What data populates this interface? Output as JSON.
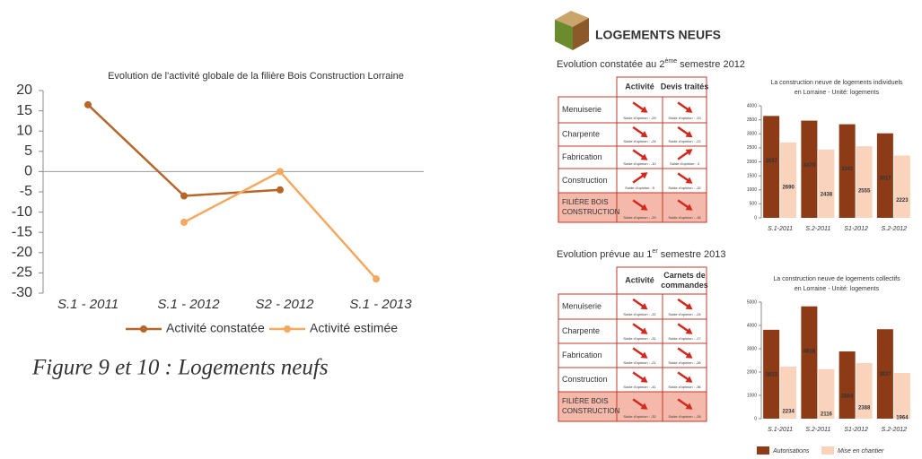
{
  "caption": "Figure 9 et 10 : Logements neufs",
  "header": {
    "title": "LOGEMENTS NEUFS"
  },
  "tables": [
    {
      "heading": {
        "before": "Evolution constatée au 2",
        "sup": "ème",
        "after": " semestre 2012"
      },
      "columns": [
        [
          "Activité"
        ],
        [
          "Devis traités"
        ]
      ],
      "rows": [
        {
          "label": [
            "Menuiserie"
          ],
          "cells": [
            {
              "text": "Solde d'opinion : -29",
              "trend": "down"
            },
            {
              "text": "Solde d'opinion : -19",
              "trend": "down"
            }
          ]
        },
        {
          "label": [
            "Charpente"
          ],
          "cells": [
            {
              "text": "Solde d'opinion : -24",
              "trend": "down"
            },
            {
              "text": "Solde d'opinion : -22",
              "trend": "down"
            }
          ]
        },
        {
          "label": [
            "Fabrication"
          ],
          "cells": [
            {
              "text": "Solde d'opinion : -10",
              "trend": "down"
            },
            {
              "text": "Solde d'opinion : 4",
              "trend": "up"
            }
          ]
        },
        {
          "label": [
            "Construction"
          ],
          "cells": [
            {
              "text": "Solde d'opinion : 5",
              "trend": "up"
            },
            {
              "text": "Solde d'opinion : -15",
              "trend": "down"
            }
          ]
        },
        {
          "label": [
            "FILIÈRE BOIS",
            "CONSTRUCTION"
          ],
          "cells": [
            {
              "text": "Solde d'opinion : -29",
              "trend": "down"
            },
            {
              "text": "Solde d'opinion : -16",
              "trend": "down"
            }
          ]
        }
      ]
    },
    {
      "heading": {
        "before": "Evolution prévue au 1",
        "sup": "er",
        "after": " semestre 2013"
      },
      "columns": [
        [
          "Activité"
        ],
        [
          "Carnets de",
          "commandes"
        ]
      ],
      "rows": [
        {
          "label": [
            "Menuiserie"
          ],
          "cells": [
            {
              "text": "Solde d'opinion : -22",
              "trend": "down"
            },
            {
              "text": "Solde d'opinion : -24",
              "trend": "down"
            }
          ]
        },
        {
          "label": [
            "Charpente"
          ],
          "cells": [
            {
              "text": "Solde d'opinion : -31",
              "trend": "down"
            },
            {
              "text": "Solde d'opinion : -17",
              "trend": "down"
            }
          ]
        },
        {
          "label": [
            "Fabrication"
          ],
          "cells": [
            {
              "text": "Solde d'opinion : -21",
              "trend": "down"
            },
            {
              "text": "Solde d'opinion : -26",
              "trend": "down"
            }
          ]
        },
        {
          "label": [
            "Construction"
          ],
          "cells": [
            {
              "text": "Solde d'opinion : -41",
              "trend": "down"
            },
            {
              "text": "Solde d'opinion : -36",
              "trend": "down"
            }
          ]
        },
        {
          "label": [
            "FILIÈRE BOIS",
            "CONSTRUCTION"
          ],
          "cells": [
            {
              "text": "Solde d'opinion : -32",
              "trend": "down"
            },
            {
              "text": "Solde d'opinion : -28",
              "trend": "down"
            }
          ]
        }
      ]
    }
  ],
  "chart_data": [
    {
      "type": "line",
      "title": "Evolution de l'activité globale de la filière Bois Construction Lorraine",
      "categories": [
        "S.1 - 2011",
        "S.1 - 2012",
        "S2 - 2012",
        "S.1 - 2013"
      ],
      "series": [
        {
          "name": "Activité constatée",
          "color": "#b8652a",
          "values": [
            16.5,
            -6,
            -4.5,
            null
          ]
        },
        {
          "name": "Activité estimée",
          "color": "#f5a860",
          "values": [
            null,
            -12.5,
            0,
            -26.5
          ]
        }
      ],
      "ylim": [
        -30,
        20
      ],
      "yticks": [
        20,
        15,
        10,
        5,
        0,
        -5,
        -10,
        -15,
        -20,
        -25,
        -30
      ],
      "legend": "bottom"
    },
    {
      "type": "bar",
      "title": [
        "La construction neuve de logements individuels",
        "en Lorraine - Unité: logements"
      ],
      "categories": [
        "S.1-2011",
        "S.2-2011",
        "S1-2012",
        "S.2-2012"
      ],
      "series": [
        {
          "name": "Autorisations",
          "color": "#8c3b16",
          "values": [
            3637,
            3470,
            3341,
            3017
          ]
        },
        {
          "name": "Mise en chantier",
          "color": "#f9d3bc",
          "values": [
            2690,
            2438,
            2555,
            2223
          ]
        }
      ],
      "ylim": [
        0,
        4000
      ],
      "yticks": [
        0,
        500,
        1000,
        1500,
        2000,
        2500,
        3000,
        3500,
        4000
      ]
    },
    {
      "type": "bar",
      "title": [
        "La construction neuve de logements collectifs",
        "en Lorraine - Unité: logements"
      ],
      "categories": [
        "S.1-2011",
        "S.2-2011",
        "S1-2012",
        "S.2-2012"
      ],
      "series": [
        {
          "name": "Autorisations",
          "color": "#8c3b16",
          "values": [
            3813,
            4818,
            2884,
            3837
          ]
        },
        {
          "name": "Mise en chantier",
          "color": "#f9d3bc",
          "values": [
            2234,
            2116,
            2388,
            1964
          ]
        }
      ],
      "ylim": [
        0,
        5000
      ],
      "yticks": [
        0,
        1000,
        2000,
        3000,
        4000,
        5000
      ],
      "legend": "bottom"
    }
  ]
}
